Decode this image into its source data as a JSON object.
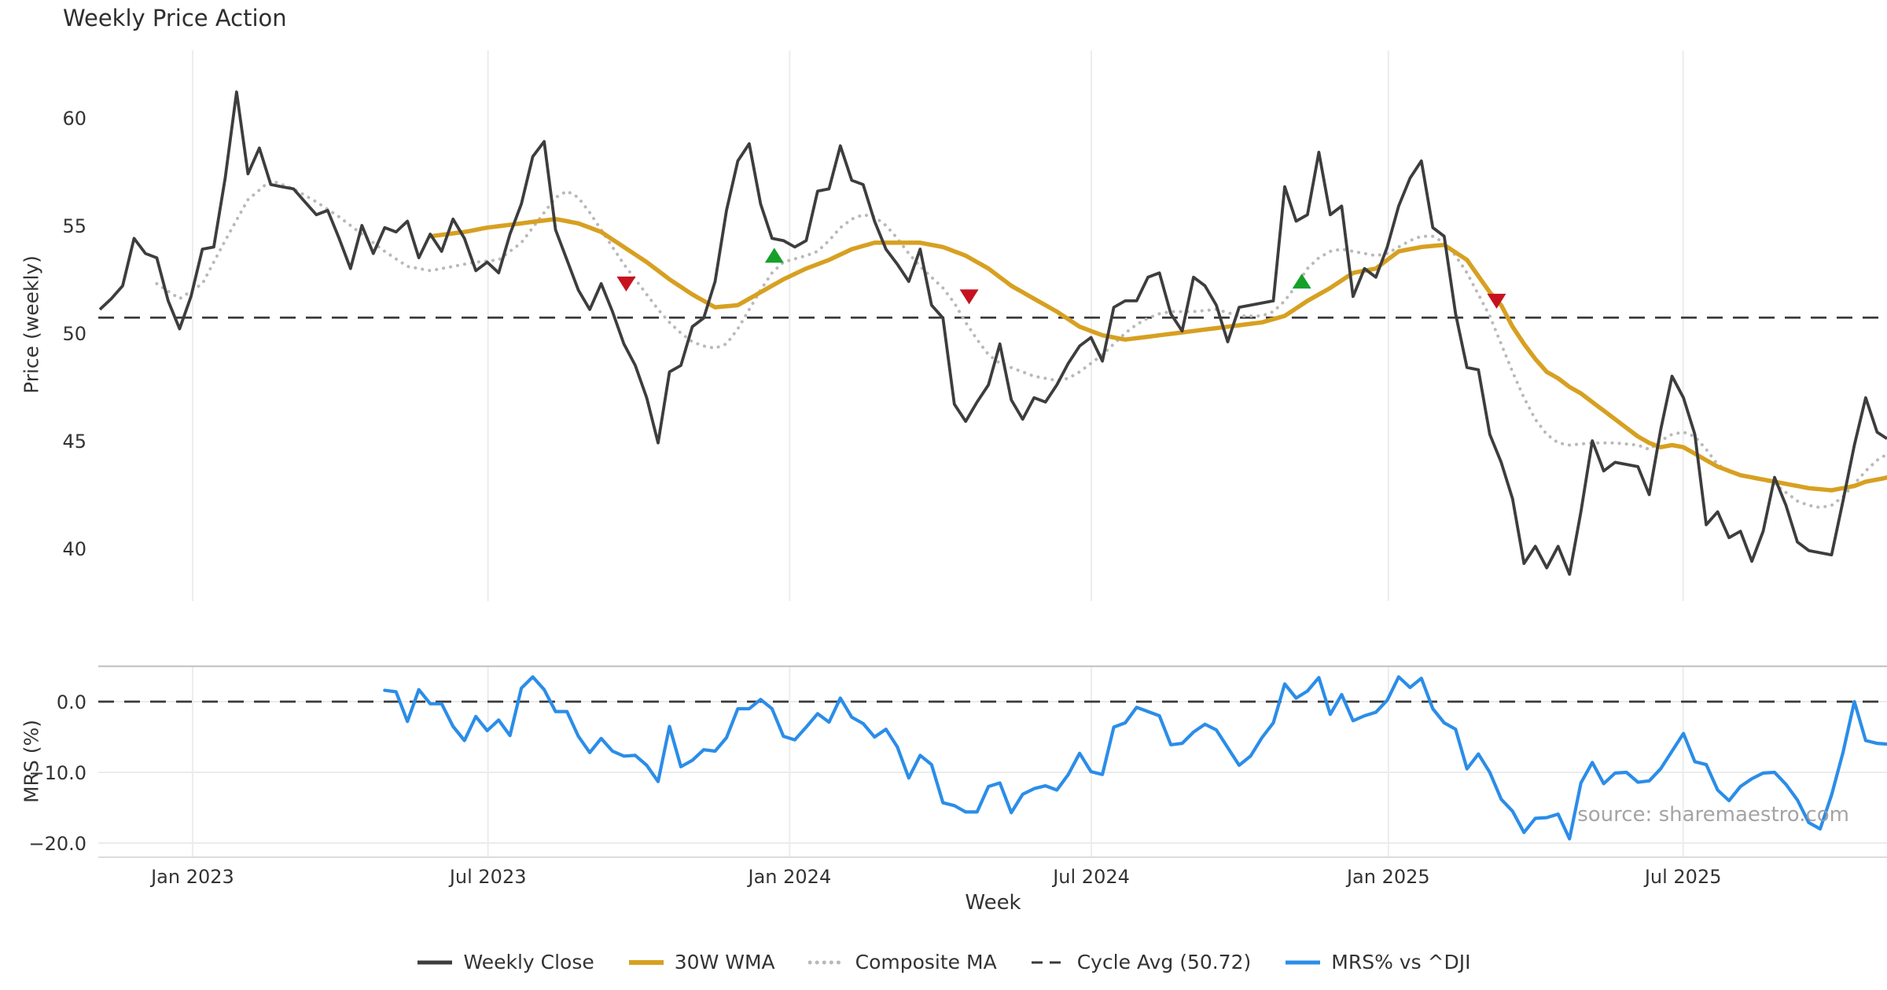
{
  "title": "Weekly Price Action",
  "ylabel_price": "Price (weekly)",
  "ylabel_mrs": "MRS (%)",
  "xlabel": "Week",
  "source": "source: sharemaestro.com",
  "colors": {
    "close": "#3d3d3d",
    "wma": "#d7a021",
    "composite": "#b9b9b9",
    "cycle": "#3a3a3a",
    "mrs": "#2b8de8",
    "buy": "#16a02a",
    "sell": "#c6121f",
    "grid": "#ececec",
    "panel_border": "#c6c6c6",
    "panel_border_light": "#dcdcdc",
    "text": "#333333"
  },
  "legend": [
    {
      "label": "Weekly Close",
      "style": "solid",
      "color_key": "close",
      "width": 5
    },
    {
      "label": "30W WMA",
      "style": "solid",
      "color_key": "wma",
      "width": 6
    },
    {
      "label": "Composite MA",
      "style": "dotted",
      "color_key": "composite",
      "width": 5
    },
    {
      "label": "Cycle Avg (50.72)",
      "style": "dashed",
      "color_key": "cycle",
      "width": 3
    },
    {
      "label": "MRS% vs ^DJI",
      "style": "solid",
      "color_key": "mrs",
      "width": 5
    }
  ],
  "chart_data": {
    "type": "line",
    "title": "Weekly Price Action",
    "xlabel": "Week",
    "x_ticks": [
      "Jan 2023",
      "Jul 2023",
      "Jan 2024",
      "Jul 2024",
      "Jan 2025",
      "Jul 2025"
    ],
    "x_tick_weeks": [
      8.14,
      34.07,
      60.55,
      87.03,
      113.1,
      138.97
    ],
    "price_axis": {
      "label": "Price (weekly)",
      "ticks": [
        60,
        55,
        50,
        45,
        40
      ],
      "range": [
        37.6,
        63.0
      ]
    },
    "mrs_axis": {
      "label": "MRS (%)",
      "ticks": [
        0.0,
        -10.0,
        -20.0
      ],
      "range": [
        -21.9,
        4.6
      ]
    },
    "cycle_avg": 50.72,
    "series": {
      "weekly_close": {
        "name": "Weekly Close",
        "start_week": 0,
        "values": [
          51.1,
          51.6,
          52.2,
          54.4,
          53.7,
          53.5,
          51.5,
          50.2,
          51.7,
          53.9,
          54.0,
          57.2,
          61.2,
          57.4,
          58.6,
          56.9,
          56.8,
          56.7,
          56.1,
          55.5,
          55.7,
          54.4,
          53.0,
          55.0,
          53.7,
          54.9,
          54.7,
          55.2,
          53.5,
          54.6,
          53.8,
          55.3,
          54.4,
          52.9,
          53.3,
          52.8,
          54.6,
          56.0,
          58.2,
          58.9,
          54.8,
          53.4,
          52.0,
          51.1,
          52.3,
          51.0,
          49.5,
          48.5,
          47.0,
          44.9,
          48.2,
          48.5,
          50.3,
          50.7,
          52.4,
          55.7,
          58.0,
          58.8,
          56.0,
          54.4,
          54.3,
          54.0,
          54.3,
          56.6,
          56.7,
          58.7,
          57.1,
          56.9,
          55.2,
          53.9,
          53.2,
          52.4,
          53.9,
          51.3,
          50.7,
          46.7,
          45.9,
          46.8,
          47.6,
          49.5,
          46.9,
          46.0,
          47.0,
          46.8,
          47.6,
          48.6,
          49.4,
          49.8,
          48.7,
          51.2,
          51.5,
          51.5,
          52.6,
          52.8,
          50.9,
          50.1,
          52.6,
          52.2,
          51.3,
          49.6,
          51.2,
          51.3,
          51.4,
          51.5,
          56.8,
          55.2,
          55.5,
          58.4,
          55.5,
          55.9,
          51.7,
          53.0,
          52.6,
          54.0,
          55.9,
          57.2,
          58.0,
          54.9,
          54.5,
          50.9,
          48.4,
          48.3,
          45.3,
          44.0,
          42.3,
          39.3,
          40.1,
          39.1,
          40.1,
          38.8,
          41.7,
          45.0,
          43.6,
          44.0,
          43.9,
          43.8,
          42.5,
          45.5,
          48.0,
          47.0,
          45.3,
          41.1,
          41.7,
          40.5,
          40.8,
          39.4,
          40.8,
          43.3,
          42.0,
          40.3,
          39.9,
          39.8,
          39.7,
          42.2,
          44.8,
          47.0,
          45.4,
          45.1
        ]
      },
      "wma_30w": {
        "name": "30W WMA",
        "anchors": [
          [
            29,
            54.5
          ],
          [
            32,
            54.7
          ],
          [
            34,
            54.9
          ],
          [
            37,
            55.1
          ],
          [
            40,
            55.3
          ],
          [
            42,
            55.1
          ],
          [
            44,
            54.7
          ],
          [
            46,
            54.0
          ],
          [
            48,
            53.3
          ],
          [
            50,
            52.5
          ],
          [
            52,
            51.8
          ],
          [
            54,
            51.2
          ],
          [
            56,
            51.3
          ],
          [
            58,
            51.9
          ],
          [
            60,
            52.5
          ],
          [
            62,
            53.0
          ],
          [
            64,
            53.4
          ],
          [
            66,
            53.9
          ],
          [
            68,
            54.2
          ],
          [
            72,
            54.2
          ],
          [
            74,
            54.0
          ],
          [
            76,
            53.6
          ],
          [
            78,
            53.0
          ],
          [
            80,
            52.2
          ],
          [
            82,
            51.6
          ],
          [
            84,
            51.0
          ],
          [
            86,
            50.3
          ],
          [
            88,
            49.9
          ],
          [
            90,
            49.7
          ],
          [
            93,
            49.9
          ],
          [
            96,
            50.1
          ],
          [
            99,
            50.3
          ],
          [
            102,
            50.5
          ],
          [
            104,
            50.8
          ],
          [
            106,
            51.5
          ],
          [
            108,
            52.1
          ],
          [
            110,
            52.8
          ],
          [
            112,
            53.0
          ],
          [
            114,
            53.8
          ],
          [
            116,
            54.0
          ],
          [
            118,
            54.1
          ],
          [
            120,
            53.4
          ],
          [
            122,
            51.9
          ],
          [
            123,
            51.3
          ],
          [
            124,
            50.3
          ],
          [
            125,
            49.5
          ],
          [
            126,
            48.8
          ],
          [
            127,
            48.2
          ],
          [
            128,
            47.9
          ],
          [
            129,
            47.5
          ],
          [
            130,
            47.2
          ],
          [
            131,
            46.8
          ],
          [
            132,
            46.4
          ],
          [
            133,
            46.0
          ],
          [
            134,
            45.6
          ],
          [
            135,
            45.2
          ],
          [
            136,
            44.9
          ],
          [
            137,
            44.7
          ],
          [
            138,
            44.8
          ],
          [
            139,
            44.7
          ],
          [
            140,
            44.4
          ],
          [
            141,
            44.1
          ],
          [
            142,
            43.8
          ],
          [
            143,
            43.6
          ],
          [
            144,
            43.4
          ],
          [
            145,
            43.3
          ],
          [
            146,
            43.2
          ],
          [
            147,
            43.1
          ],
          [
            148,
            43.0
          ],
          [
            149,
            42.9
          ],
          [
            150,
            42.8
          ],
          [
            152,
            42.7
          ],
          [
            153,
            42.8
          ],
          [
            154,
            42.9
          ],
          [
            155,
            43.1
          ],
          [
            157,
            43.3
          ]
        ]
      },
      "composite_ma": {
        "name": "Composite MA",
        "anchors": [
          [
            5,
            52.3
          ],
          [
            7,
            51.6
          ],
          [
            9,
            52.3
          ],
          [
            11,
            54.3
          ],
          [
            13,
            56.2
          ],
          [
            15,
            57.1
          ],
          [
            17,
            56.7
          ],
          [
            19,
            56.1
          ],
          [
            21,
            55.4
          ],
          [
            23,
            54.6
          ],
          [
            25,
            53.8
          ],
          [
            27,
            53.1
          ],
          [
            29,
            52.9
          ],
          [
            31,
            53.1
          ],
          [
            33,
            53.3
          ],
          [
            35,
            53.4
          ],
          [
            37,
            54.2
          ],
          [
            39,
            55.6
          ],
          [
            40,
            56.3
          ],
          [
            41,
            56.6
          ],
          [
            42,
            56.3
          ],
          [
            43,
            55.6
          ],
          [
            44,
            54.8
          ],
          [
            45,
            54.0
          ],
          [
            46,
            53.2
          ],
          [
            47,
            52.5
          ],
          [
            48,
            51.8
          ],
          [
            49,
            51.1
          ],
          [
            50,
            50.5
          ],
          [
            51,
            50.0
          ],
          [
            52,
            49.6
          ],
          [
            53,
            49.4
          ],
          [
            54,
            49.3
          ],
          [
            55,
            49.5
          ],
          [
            56,
            50.2
          ],
          [
            57,
            51.1
          ],
          [
            58,
            52.0
          ],
          [
            59,
            52.8
          ],
          [
            60,
            53.3
          ],
          [
            62,
            53.6
          ],
          [
            63,
            53.8
          ],
          [
            64,
            54.3
          ],
          [
            65,
            54.9
          ],
          [
            66,
            55.3
          ],
          [
            67,
            55.5
          ],
          [
            68,
            55.4
          ],
          [
            69,
            55.0
          ],
          [
            70,
            54.4
          ],
          [
            71,
            53.7
          ],
          [
            72,
            53.1
          ],
          [
            73,
            52.6
          ],
          [
            74,
            52.1
          ],
          [
            75,
            51.4
          ],
          [
            76,
            50.5
          ],
          [
            77,
            49.7
          ],
          [
            78,
            49.0
          ],
          [
            79,
            48.6
          ],
          [
            80,
            48.4
          ],
          [
            81,
            48.2
          ],
          [
            82,
            48.0
          ],
          [
            83,
            47.9
          ],
          [
            84,
            47.8
          ],
          [
            85,
            47.9
          ],
          [
            86,
            48.2
          ],
          [
            87,
            48.6
          ],
          [
            88,
            49.0
          ],
          [
            89,
            49.5
          ],
          [
            90,
            50.0
          ],
          [
            91,
            50.4
          ],
          [
            92,
            50.7
          ],
          [
            93,
            50.9
          ],
          [
            94,
            51.0
          ],
          [
            96,
            51.0
          ],
          [
            98,
            51.1
          ],
          [
            100,
            50.8
          ],
          [
            102,
            50.8
          ],
          [
            103,
            51.0
          ],
          [
            104,
            51.5
          ],
          [
            105,
            52.2
          ],
          [
            106,
            53.0
          ],
          [
            107,
            53.5
          ],
          [
            108,
            53.8
          ],
          [
            109,
            53.9
          ],
          [
            110,
            53.8
          ],
          [
            112,
            53.6
          ],
          [
            113,
            53.7
          ],
          [
            114,
            54.0
          ],
          [
            115,
            54.3
          ],
          [
            116,
            54.5
          ],
          [
            117,
            54.5
          ],
          [
            118,
            54.2
          ],
          [
            119,
            53.6
          ],
          [
            120,
            52.8
          ],
          [
            121,
            51.8
          ],
          [
            122,
            50.8
          ],
          [
            123,
            49.5
          ],
          [
            124,
            48.2
          ],
          [
            125,
            47.0
          ],
          [
            126,
            46.0
          ],
          [
            127,
            45.3
          ],
          [
            128,
            44.9
          ],
          [
            129,
            44.8
          ],
          [
            131,
            44.9
          ],
          [
            133,
            44.9
          ],
          [
            135,
            44.8
          ],
          [
            136,
            44.6
          ],
          [
            137,
            45.0
          ],
          [
            138,
            45.3
          ],
          [
            139,
            45.4
          ],
          [
            140,
            45.2
          ],
          [
            141,
            44.6
          ],
          [
            142,
            43.9
          ],
          [
            143,
            43.6
          ],
          [
            144,
            43.4
          ],
          [
            145,
            43.3
          ],
          [
            146,
            43.2
          ],
          [
            147,
            43.0
          ],
          [
            148,
            42.6
          ],
          [
            149,
            42.2
          ],
          [
            150,
            42.0
          ],
          [
            151,
            41.9
          ],
          [
            152,
            42.0
          ],
          [
            153,
            42.4
          ],
          [
            154,
            43.0
          ],
          [
            155,
            43.6
          ],
          [
            156,
            44.1
          ],
          [
            157,
            44.4
          ]
        ]
      },
      "mrs_pct": {
        "name": "MRS% vs ^DJI",
        "start_week": 25,
        "values": [
          1.6,
          1.4,
          -2.8,
          1.7,
          -0.3,
          -0.3,
          -3.5,
          -5.5,
          -2.1,
          -4.1,
          -2.6,
          -4.8,
          1.9,
          3.5,
          1.7,
          -1.4,
          -1.4,
          -4.9,
          -7.2,
          -5.2,
          -7.0,
          -7.7,
          -7.6,
          -9.0,
          -11.3,
          -3.5,
          -9.2,
          -8.3,
          -6.8,
          -7.0,
          -5.1,
          -1.0,
          -1.0,
          0.3,
          -1.0,
          -4.9,
          -5.4,
          -3.6,
          -1.7,
          -2.9,
          0.5,
          -2.2,
          -3.1,
          -5.0,
          -3.9,
          -6.4,
          -10.8,
          -7.6,
          -8.9,
          -14.3,
          -14.7,
          -15.6,
          -15.6,
          -12.0,
          -11.5,
          -15.7,
          -13.1,
          -12.3,
          -11.9,
          -12.5,
          -10.3,
          -7.3,
          -9.9,
          -10.3,
          -3.6,
          -3.0,
          -0.8,
          -1.4,
          -2.0,
          -6.1,
          -5.9,
          -4.3,
          -3.2,
          -4.0,
          -6.5,
          -9.0,
          -7.7,
          -5.1,
          -3.0,
          2.5,
          0.5,
          1.5,
          3.4,
          -1.8,
          1.0,
          -2.7,
          -2.0,
          -1.5,
          0.2,
          3.5,
          2.0,
          3.3,
          -1.0,
          -3.0,
          -3.9,
          -9.5,
          -7.4,
          -10.0,
          -13.8,
          -15.5,
          -18.5,
          -16.5,
          -16.4,
          -15.9,
          -19.4,
          -11.5,
          -8.6,
          -11.6,
          -10.1,
          -10.0,
          -11.4,
          -11.2,
          -9.5,
          -7.0,
          -4.5,
          -8.5,
          -8.9,
          -12.5,
          -14.0,
          -12.0,
          -10.9,
          -10.1,
          -10.0,
          -11.7,
          -13.9,
          -17.1,
          -18.0,
          -13.2,
          -7.2,
          0.0,
          -5.5,
          -5.9,
          -6.0
        ]
      }
    },
    "signals": {
      "sell": [
        {
          "week": 46.2,
          "price": 52.3
        },
        {
          "week": 76.3,
          "price": 51.7
        },
        {
          "week": 122.6,
          "price": 51.5
        }
      ],
      "buy": [
        {
          "week": 59.2,
          "price": 53.6
        },
        {
          "week": 105.5,
          "price": 52.4
        }
      ]
    }
  }
}
